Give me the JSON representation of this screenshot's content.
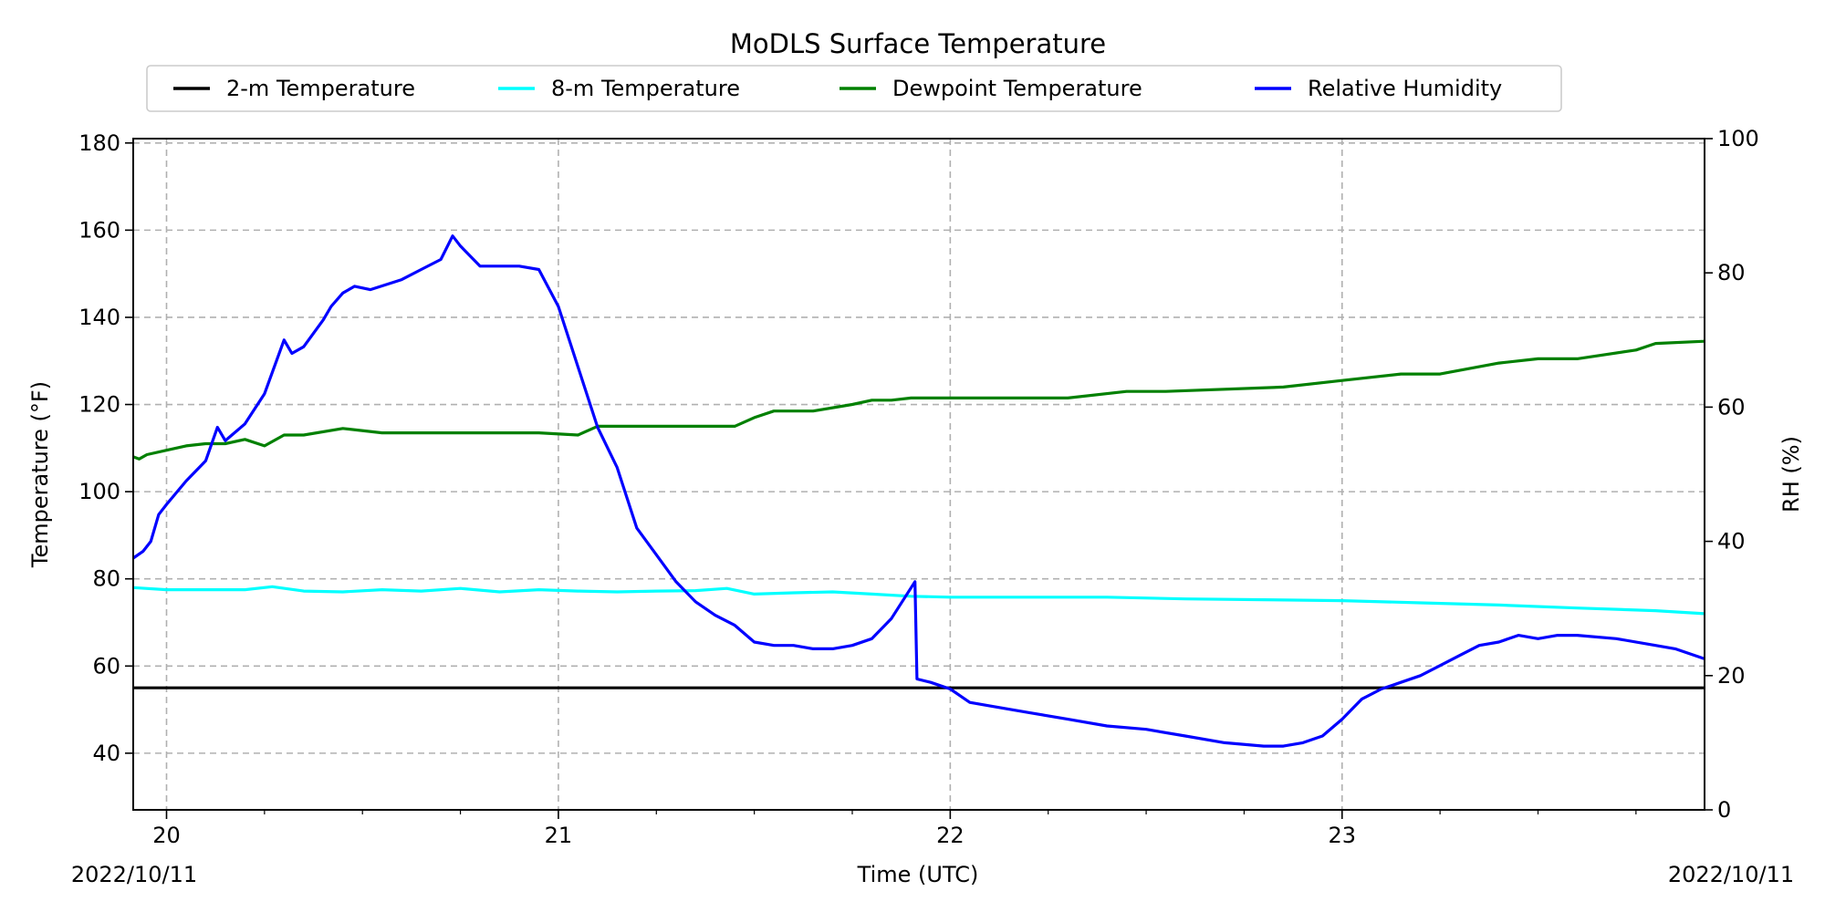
{
  "chart_data": {
    "type": "line",
    "title": "MoDLS Surface Temperature",
    "xlabel": "Time (UTC)",
    "ylabel": "Temperature ($^\\circ$F)",
    "ylabel_display": "Temperature (°F)",
    "y2label": "RH (%)",
    "date_left": "2022/10/11",
    "date_right": "2022/10/11",
    "xlim": [
      19.915,
      23.925
    ],
    "ylim": [
      27,
      181
    ],
    "y2lim": [
      0,
      100
    ],
    "x_ticks": [
      20,
      21,
      22,
      23
    ],
    "y_ticks": [
      40,
      60,
      80,
      100,
      120,
      140,
      160,
      180
    ],
    "y2_ticks": [
      0,
      20,
      40,
      60,
      80,
      100
    ],
    "grid": true,
    "legend_placement": "top-center",
    "series": [
      {
        "name": "2-m Temperature",
        "color": "#000000",
        "axis": "left",
        "x": [
          19.915,
          20.5,
          21.0,
          21.5,
          22.0,
          22.5,
          23.0,
          23.5,
          23.925
        ],
        "values": [
          55.0,
          55.0,
          55.0,
          55.0,
          55.0,
          55.0,
          55.0,
          55.0,
          55.0
        ]
      },
      {
        "name": "8-m Temperature",
        "color": "#00ffff",
        "axis": "left",
        "x": [
          19.915,
          20.0,
          20.1,
          20.2,
          20.27,
          20.35,
          20.45,
          20.55,
          20.65,
          20.75,
          20.85,
          20.95,
          21.05,
          21.15,
          21.25,
          21.35,
          21.43,
          21.5,
          21.6,
          21.7,
          21.8,
          21.9,
          22.0,
          22.2,
          22.4,
          22.6,
          22.8,
          23.0,
          23.2,
          23.4,
          23.6,
          23.8,
          23.925
        ],
        "values": [
          78.0,
          77.5,
          77.5,
          77.5,
          78.2,
          77.2,
          77.0,
          77.5,
          77.2,
          77.8,
          77.0,
          77.5,
          77.2,
          77.0,
          77.2,
          77.3,
          77.8,
          76.5,
          76.8,
          77.0,
          76.5,
          76.0,
          75.8,
          75.8,
          75.8,
          75.4,
          75.2,
          75.0,
          74.5,
          74.0,
          73.3,
          72.7,
          72.0
        ]
      },
      {
        "name": "Dewpoint Temperature",
        "color": "#008000",
        "axis": "left",
        "x": [
          19.915,
          19.93,
          19.95,
          20.0,
          20.05,
          20.1,
          20.15,
          20.2,
          20.25,
          20.3,
          20.35,
          20.45,
          20.55,
          20.65,
          20.75,
          20.85,
          20.95,
          21.05,
          21.1,
          21.2,
          21.3,
          21.45,
          21.5,
          21.55,
          21.65,
          21.75,
          21.8,
          21.85,
          21.9,
          22.0,
          22.1,
          22.3,
          22.45,
          22.55,
          22.85,
          23.0,
          23.15,
          23.25,
          23.4,
          23.5,
          23.6,
          23.75,
          23.8,
          23.925
        ],
        "values": [
          108,
          107.5,
          108.5,
          109.5,
          110.5,
          111,
          111,
          112,
          110.5,
          113,
          113,
          114.5,
          113.5,
          113.5,
          113.5,
          113.5,
          113.5,
          113,
          115,
          115,
          115,
          115,
          117,
          118.5,
          118.5,
          120,
          121,
          121,
          121.5,
          121.5,
          121.5,
          121.5,
          123,
          123,
          124,
          125.5,
          127,
          127,
          129.5,
          130.5,
          130.5,
          132.5,
          134,
          134.5
        ]
      },
      {
        "name": "Relative Humidity",
        "color": "#0000ff",
        "axis": "right",
        "x": [
          19.915,
          19.94,
          19.96,
          19.98,
          20.0,
          20.05,
          20.1,
          20.13,
          20.15,
          20.2,
          20.25,
          20.3,
          20.32,
          20.35,
          20.4,
          20.42,
          20.45,
          20.48,
          20.52,
          20.6,
          20.65,
          20.7,
          20.73,
          20.75,
          20.8,
          20.85,
          20.9,
          20.95,
          21.0,
          21.05,
          21.1,
          21.15,
          21.2,
          21.25,
          21.3,
          21.35,
          21.4,
          21.45,
          21.5,
          21.55,
          21.6,
          21.65,
          21.7,
          21.75,
          21.8,
          21.85,
          21.91,
          21.915,
          21.95,
          22.0,
          22.05,
          22.1,
          22.2,
          22.3,
          22.4,
          22.5,
          22.6,
          22.7,
          22.8,
          22.85,
          22.9,
          22.95,
          23.0,
          23.05,
          23.1,
          23.15,
          23.2,
          23.25,
          23.3,
          23.35,
          23.4,
          23.45,
          23.5,
          23.55,
          23.6,
          23.7,
          23.8,
          23.85,
          23.925
        ],
        "values": [
          37.5,
          38.5,
          40,
          44,
          45.5,
          49,
          52,
          57,
          55,
          57.5,
          62,
          70,
          68,
          69,
          73,
          75,
          77,
          78,
          77.5,
          79,
          80.5,
          82,
          85.5,
          84,
          81,
          81,
          81,
          80.5,
          75,
          66,
          57,
          51,
          42,
          38,
          34,
          31,
          29,
          27.5,
          25,
          24.5,
          24.5,
          24,
          24,
          24.5,
          25.5,
          28.5,
          34,
          19.5,
          19,
          18,
          16,
          15.5,
          14.5,
          13.5,
          12.5,
          12,
          11,
          10,
          9.5,
          9.5,
          10,
          11,
          13.5,
          16.5,
          18,
          19,
          20,
          21.5,
          23,
          24.5,
          25,
          26,
          25.5,
          26,
          26,
          25.5,
          24.5,
          24,
          22.5
        ]
      }
    ]
  }
}
